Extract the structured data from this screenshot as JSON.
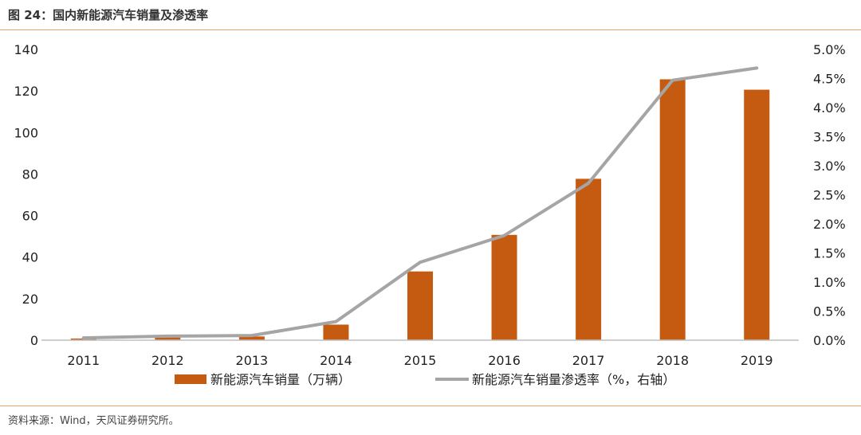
{
  "figure_title": "图 24：国内新能源汽车销量及渗透率",
  "source": "资料来源：Wind，天风证券研究所。",
  "chart_data": {
    "type": "bar",
    "title": "",
    "categories": [
      "2011",
      "2012",
      "2013",
      "2014",
      "2015",
      "2016",
      "2017",
      "2018",
      "2019"
    ],
    "series": [
      {
        "name": "新能源汽车销量（万辆）",
        "type": "bar",
        "axis": "left",
        "color": "#c55a11",
        "values": [
          0.8,
          1.3,
          1.8,
          7.5,
          33.1,
          50.7,
          77.7,
          125.6,
          120.6
        ]
      },
      {
        "name": "新能源汽车销量渗透率（%，右轴）",
        "type": "line",
        "axis": "right",
        "color": "#a5a5a5",
        "values": [
          0.04,
          0.07,
          0.08,
          0.32,
          1.34,
          1.8,
          2.7,
          4.47,
          4.68
        ]
      }
    ],
    "y_left": {
      "min": 0,
      "max": 140,
      "ticks": [
        0,
        20,
        40,
        60,
        80,
        100,
        120,
        140
      ]
    },
    "y_right": {
      "min": 0,
      "max": 5,
      "ticks": [
        "0.0%",
        "0.5%",
        "1.0%",
        "1.5%",
        "2.0%",
        "2.5%",
        "3.0%",
        "3.5%",
        "4.0%",
        "4.5%",
        "5.0%"
      ]
    },
    "grid": false,
    "legend": "bottom"
  }
}
